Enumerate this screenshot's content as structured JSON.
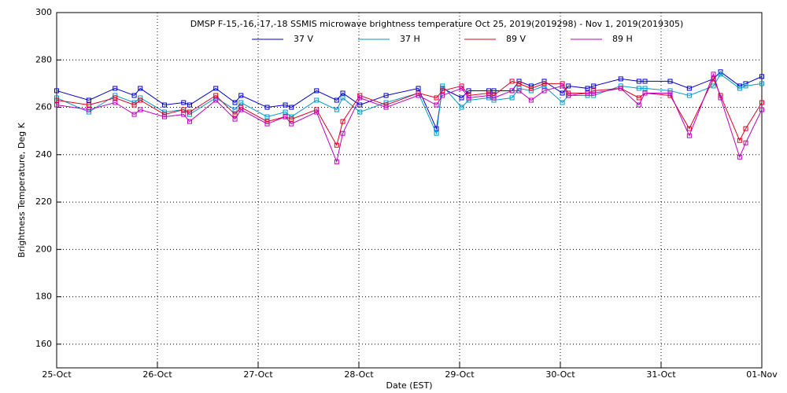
{
  "chart_data": {
    "type": "line",
    "title": "DMSP F-15,-16,-17,-18 SSMIS microwave brightness temperature Oct 25, 2019(2019298) - Nov  1, 2019(2019305)",
    "x_label": "Date (EST)",
    "y_label": "Brightness Temperature, Deg K",
    "x": [
      0,
      0.32,
      0.58,
      0.77,
      0.83,
      1.07,
      1.26,
      1.32,
      1.58,
      1.77,
      1.83,
      2.09,
      2.27,
      2.33,
      2.58,
      2.78,
      2.84,
      3.01,
      3.27,
      3.59,
      3.77,
      3.83,
      4.02,
      4.09,
      4.29,
      4.34,
      4.52,
      4.59,
      4.71,
      4.84,
      5.02,
      5.08,
      5.27,
      5.33,
      5.6,
      5.78,
      5.84,
      6.09,
      6.28,
      6.52,
      6.59,
      6.78,
      6.84,
      7.0
    ],
    "series": [
      {
        "name": "37 V",
        "color": "#0000cc",
        "values": [
          267,
          263,
          268,
          265,
          268,
          261,
          262,
          261,
          268,
          262,
          265,
          260,
          261,
          260,
          267,
          263,
          266,
          261,
          265,
          268,
          251,
          268,
          264,
          267,
          267,
          267,
          267,
          271,
          269,
          271,
          266,
          269,
          268,
          269,
          272,
          271,
          271,
          271,
          268,
          272,
          275,
          269,
          270,
          273
        ]
      },
      {
        "name": "37 H",
        "color": "#0099cc",
        "values": [
          264,
          258,
          265,
          262,
          264,
          258,
          259,
          257,
          264,
          259,
          262,
          256,
          258,
          256,
          263,
          259,
          264,
          258,
          262,
          266,
          249,
          269,
          260,
          263,
          264,
          263,
          264,
          268,
          267,
          269,
          262,
          265,
          265,
          265,
          269,
          268,
          268,
          267,
          265,
          269,
          274,
          268,
          269,
          270
        ]
      },
      {
        "name": "89 V",
        "color": "#dd0022",
        "values": [
          263,
          261,
          264,
          261,
          263,
          257,
          259,
          258,
          265,
          257,
          260,
          254,
          256,
          255,
          259,
          244,
          254,
          265,
          261,
          266,
          264,
          267,
          269,
          265,
          266,
          265,
          271,
          270,
          268,
          270,
          270,
          266,
          266,
          267,
          268,
          264,
          266,
          265,
          251,
          272,
          265,
          246,
          251,
          262
        ]
      },
      {
        "name": "89 H",
        "color": "#bb00bb",
        "values": [
          261,
          259,
          262,
          257,
          259,
          256,
          257,
          254,
          263,
          255,
          259,
          253,
          256,
          253,
          258,
          237,
          249,
          264,
          260,
          265,
          261,
          265,
          268,
          264,
          265,
          264,
          267,
          267,
          263,
          267,
          269,
          265,
          266,
          266,
          268,
          261,
          266,
          266,
          248,
          274,
          264,
          239,
          245,
          259
        ]
      }
    ],
    "xlim": [
      0,
      7
    ],
    "xticks": [
      {
        "value": 0,
        "label": "25-Oct"
      },
      {
        "value": 1,
        "label": "26-Oct"
      },
      {
        "value": 2,
        "label": "27-Oct"
      },
      {
        "value": 3,
        "label": "28-Oct"
      },
      {
        "value": 4,
        "label": "29-Oct"
      },
      {
        "value": 5,
        "label": "30-Oct"
      },
      {
        "value": 6,
        "label": "31-Oct"
      },
      {
        "value": 7,
        "label": "01-Nov"
      }
    ],
    "ylim": [
      150,
      300
    ],
    "yticks": [
      160,
      180,
      200,
      220,
      240,
      260,
      280,
      300
    ],
    "grid": true
  }
}
